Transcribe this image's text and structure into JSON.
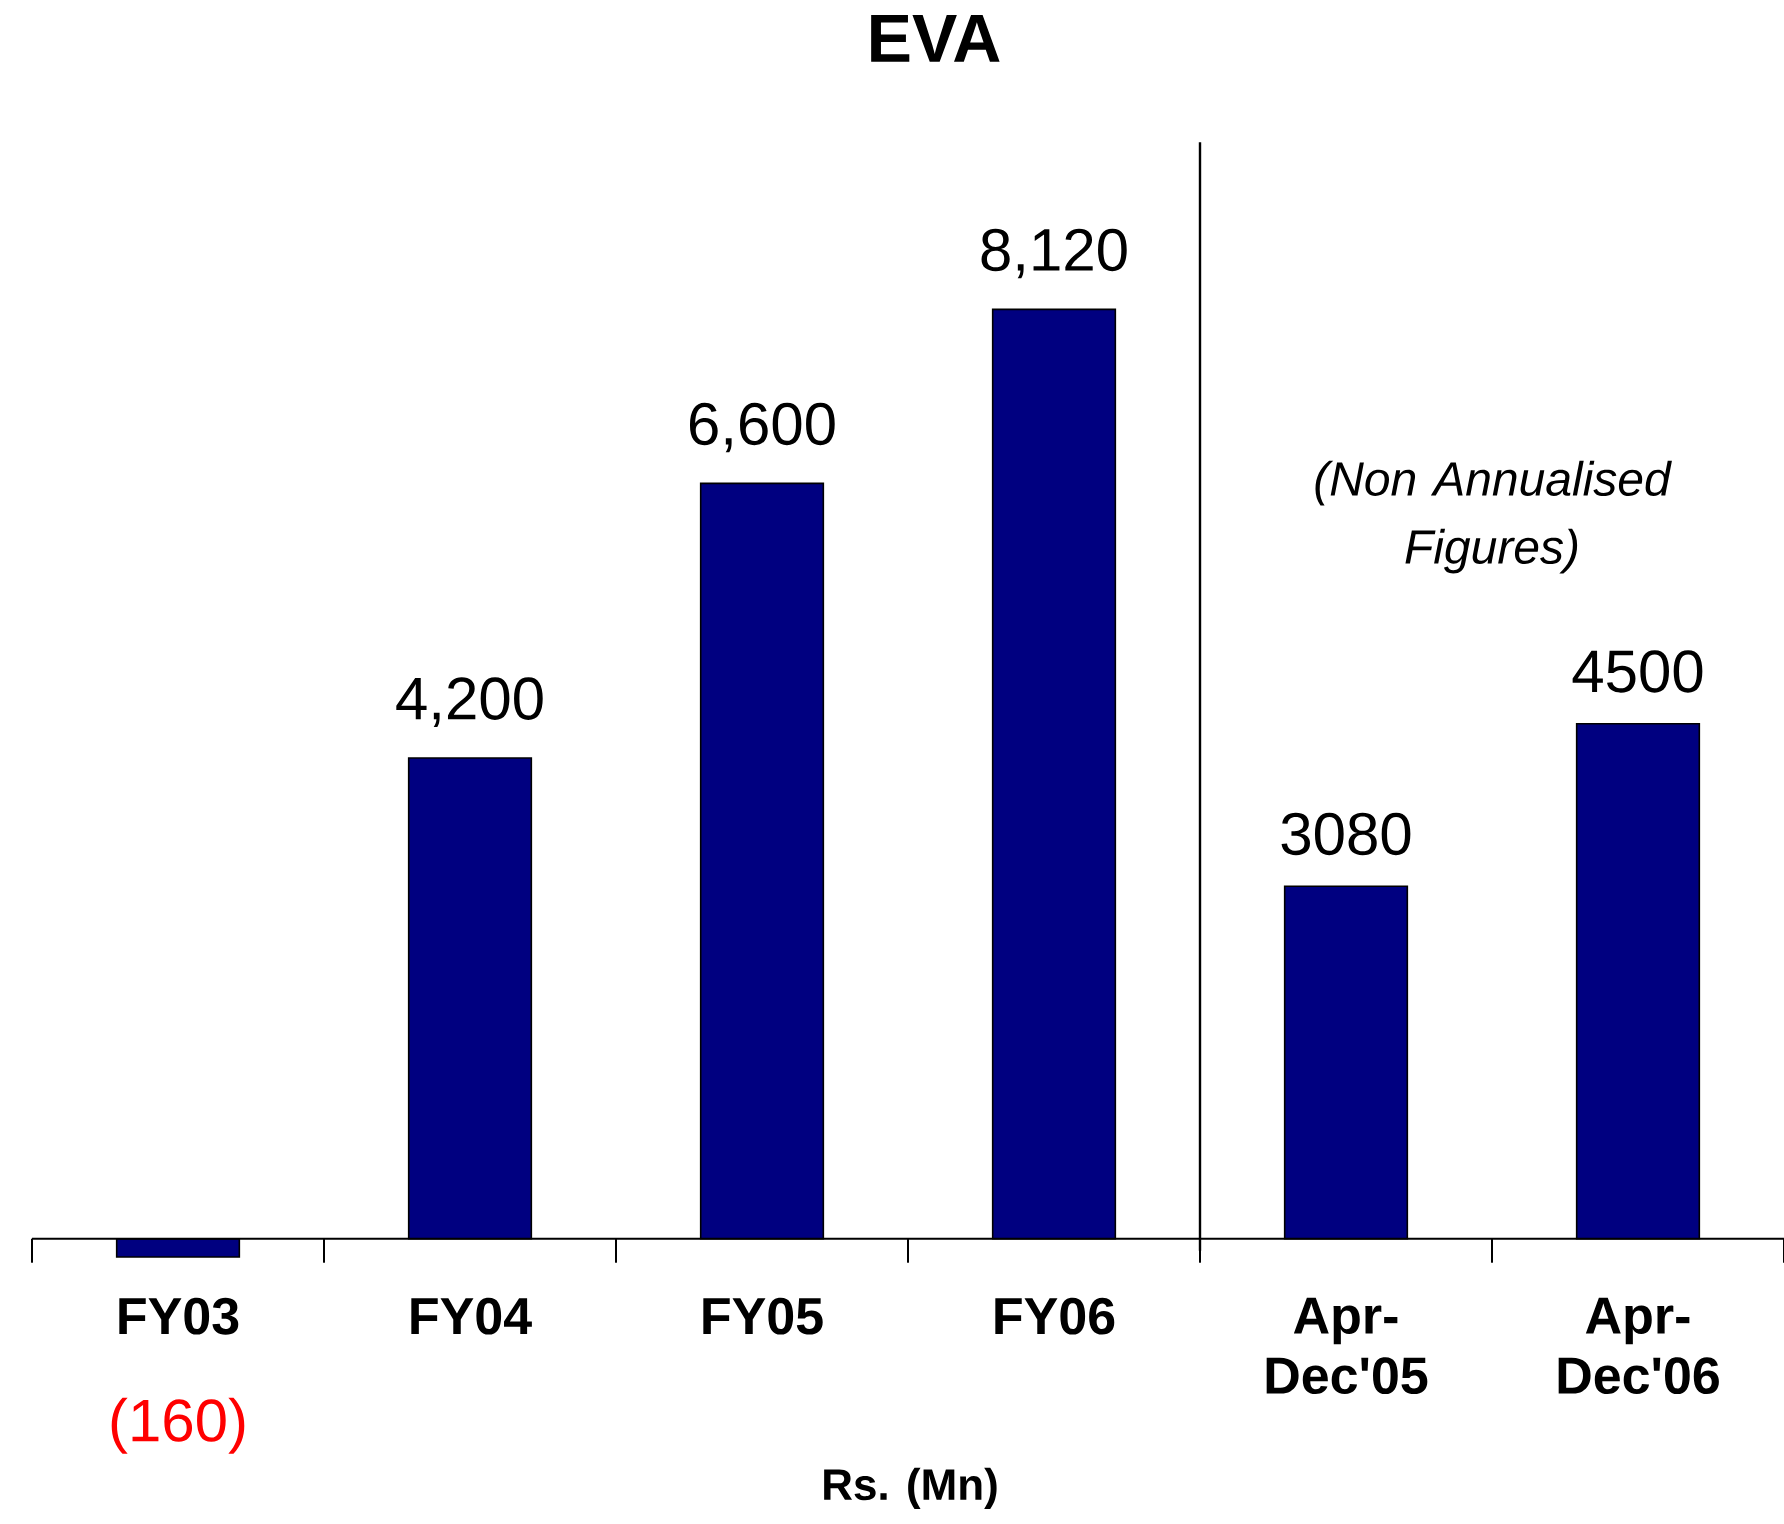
{
  "chart_data": {
    "type": "bar",
    "title": "EVA",
    "xlabel": "Rs. (Mn)",
    "categories": [
      "FY03",
      "FY04",
      "FY05",
      "FY06",
      "Apr-Dec'05",
      "Apr-Dec'06"
    ],
    "values": [
      -160,
      4200,
      6600,
      8120,
      3080,
      4500
    ],
    "value_labels": [
      "(160)",
      "4,200",
      "6,600",
      "8,120",
      "3080",
      "4500"
    ],
    "color": "#000080",
    "tick_labels": "x",
    "annotations": [
      "(Non Annualised Figures)"
    ]
  }
}
